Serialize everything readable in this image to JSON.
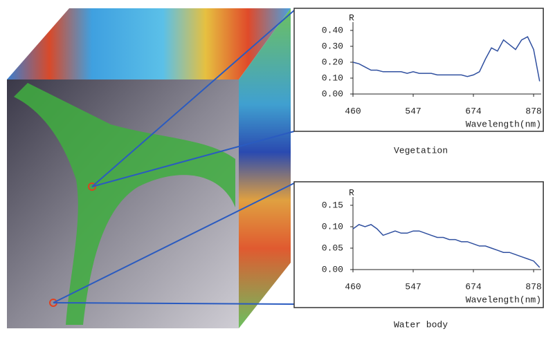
{
  "chart_data": [
    {
      "type": "line",
      "title": "Vegetation",
      "y_label": "R",
      "x_label": "Wavelength(nm)",
      "color": "#2f4f9f",
      "categories": [
        "460",
        null,
        null,
        null,
        null,
        null,
        null,
        null,
        null,
        null,
        "547",
        null,
        null,
        null,
        null,
        null,
        null,
        null,
        null,
        null,
        "674",
        null,
        null,
        null,
        null,
        null,
        null,
        null,
        null,
        null,
        "878",
        null
      ],
      "values": [
        0.2,
        0.19,
        0.17,
        0.15,
        0.15,
        0.14,
        0.14,
        0.14,
        0.14,
        0.13,
        0.14,
        0.13,
        0.13,
        0.13,
        0.12,
        0.12,
        0.12,
        0.12,
        0.12,
        0.11,
        0.12,
        0.14,
        0.22,
        0.29,
        0.27,
        0.34,
        0.31,
        0.28,
        0.34,
        0.36,
        0.28,
        0.08
      ],
      "ylim": [
        0,
        0.4
      ],
      "yticks": [
        {
          "value": 0,
          "label": "0.00"
        },
        {
          "value": 0.1,
          "label": "0.10"
        },
        {
          "value": 0.2,
          "label": "0.20"
        },
        {
          "value": 0.3,
          "label": "0.30"
        },
        {
          "value": 0.4,
          "label": "0.40"
        }
      ]
    },
    {
      "type": "line",
      "title": "Water body",
      "y_label": "R",
      "x_label": "Wavelength(nm)",
      "color": "#2f4f9f",
      "categories": [
        "460",
        null,
        null,
        null,
        null,
        null,
        null,
        null,
        null,
        null,
        "547",
        null,
        null,
        null,
        null,
        null,
        null,
        null,
        null,
        null,
        "674",
        null,
        null,
        null,
        null,
        null,
        null,
        null,
        null,
        null,
        "878",
        null
      ],
      "values": [
        0.095,
        0.105,
        0.1,
        0.105,
        0.095,
        0.08,
        0.085,
        0.09,
        0.085,
        0.085,
        0.09,
        0.09,
        0.085,
        0.08,
        0.075,
        0.075,
        0.07,
        0.07,
        0.065,
        0.065,
        0.06,
        0.055,
        0.055,
        0.05,
        0.045,
        0.04,
        0.04,
        0.035,
        0.03,
        0.025,
        0.02,
        0.005
      ],
      "ylim": [
        0,
        0.15
      ],
      "yticks": [
        {
          "value": 0,
          "label": "0.00"
        },
        {
          "value": 0.05,
          "label": "0.05"
        },
        {
          "value": 0.1,
          "label": "0.10"
        },
        {
          "value": 0.15,
          "label": "0.15"
        }
      ]
    }
  ]
}
